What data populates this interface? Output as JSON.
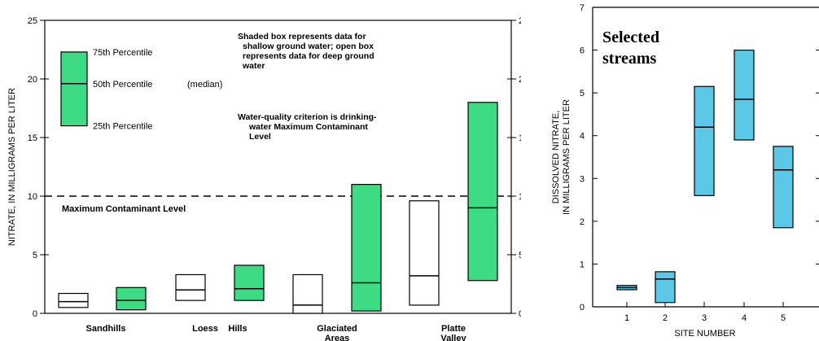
{
  "colors": {
    "shallow_fill": "#3ddc84",
    "stream_fill": "#5bc8e8",
    "stroke": "#000000"
  },
  "chart_data": [
    {
      "type": "box",
      "title": "",
      "ylabel": "NITRATE, IN MILLIGRAMS PER LITER",
      "ylim": [
        0,
        25
      ],
      "yticks": [
        "0",
        "5",
        "10",
        "15",
        "20",
        "25"
      ],
      "categories": [
        "Sandhills",
        "Loess Hills",
        "Glaciated Areas",
        "Platte Valley"
      ],
      "category_labels": [
        {
          "lines": [
            "Sandhills"
          ]
        },
        {
          "lines": [
            "Loess",
            "Hills"
          ]
        },
        {
          "lines": [
            "Glaciated",
            "Areas"
          ]
        },
        {
          "lines": [
            "Platte",
            "Valley"
          ]
        }
      ],
      "boxes": [
        {
          "category": "Sandhills",
          "kind": "deep",
          "q1": 0.5,
          "median": 1.0,
          "q3": 1.7
        },
        {
          "category": "Sandhills",
          "kind": "shallow",
          "q1": 0.3,
          "median": 1.1,
          "q3": 2.2
        },
        {
          "category": "Loess Hills",
          "kind": "deep",
          "q1": 1.1,
          "median": 2.0,
          "q3": 3.3
        },
        {
          "category": "Loess Hills",
          "kind": "shallow",
          "q1": 1.1,
          "median": 2.1,
          "q3": 4.1
        },
        {
          "category": "Glaciated Areas",
          "kind": "deep",
          "q1": 0.0,
          "median": 0.7,
          "q3": 3.3
        },
        {
          "category": "Glaciated Areas",
          "kind": "shallow",
          "q1": 0.2,
          "median": 2.6,
          "q3": 11.0
        },
        {
          "category": "Platte Valley",
          "kind": "deep",
          "q1": 0.7,
          "median": 3.2,
          "q3": 9.6
        },
        {
          "category": "Platte Valley",
          "kind": "shallow",
          "q1": 2.8,
          "median": 9.0,
          "q3": 18.0
        }
      ],
      "reference_line": {
        "value": 10,
        "label": "Maximum Contaminant Level"
      },
      "legend": {
        "sample": {
          "q1": 16,
          "median": 19.6,
          "q3": 22.3
        },
        "p75": "75th Percentile",
        "p50": "50th Percentile",
        "p50_suffix": "(median)",
        "p25": "25th Percentile"
      },
      "note1": [
        "Shaded box represents data for",
        "shallow ground water; open box",
        "represents data for deep ground",
        "water"
      ],
      "note2": [
        "Water-quality criterion is drinking-",
        "water Maximum Contaminant",
        "Level"
      ]
    },
    {
      "type": "box",
      "title": [
        "Selected",
        "streams"
      ],
      "xlabel": "SITE NUMBER",
      "ylabel": [
        "DISSOLVED NITRATE,",
        "IN MILLIGRAMS PER LITER"
      ],
      "ylim": [
        0,
        7
      ],
      "yticks": [
        "0",
        "1",
        "2",
        "3",
        "4",
        "5",
        "6",
        "7"
      ],
      "categories": [
        "1",
        "2",
        "3",
        "4",
        "5"
      ],
      "boxes": [
        {
          "category": "1",
          "q1": 0.4,
          "median": 0.45,
          "q3": 0.5
        },
        {
          "category": "2",
          "q1": 0.1,
          "median": 0.65,
          "q3": 0.82
        },
        {
          "category": "3",
          "q1": 2.6,
          "median": 4.2,
          "q3": 5.15
        },
        {
          "category": "4",
          "q1": 3.9,
          "median": 4.85,
          "q3": 6.0
        },
        {
          "category": "5",
          "q1": 1.85,
          "median": 3.2,
          "q3": 3.75
        }
      ]
    }
  ]
}
